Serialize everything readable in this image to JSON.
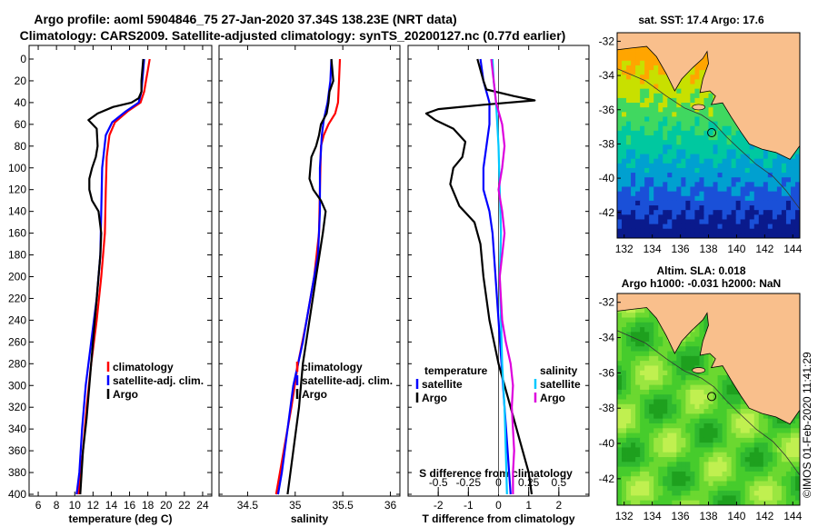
{
  "header": {
    "line1": "Argo profile: aoml 5904846_75 27-Jan-2020 37.34S 138.23E (NRT data)",
    "line2": "Climatology: CARS2009. Satellite-adjusted climatology: synTS_20200127.nc (0.77d earlier)"
  },
  "colors": {
    "climatology": "#ff0000",
    "satellite": "#0000ff",
    "argo": "#000000",
    "sal_satellite": "#00c8ff",
    "sal_climatology": "#dd00dd",
    "land": "#f9bf8c",
    "sea_deep": "#0a1a8c"
  },
  "chart_data": [
    {
      "type": "line",
      "panel": "temperature",
      "xlabel": "temperature (deg C)",
      "ylabel": "",
      "xlim": [
        5,
        25
      ],
      "ylim": [
        400,
        0
      ],
      "xticks": [
        6,
        8,
        10,
        12,
        14,
        16,
        18,
        20,
        22,
        24
      ],
      "yticks": [
        0,
        20,
        40,
        60,
        80,
        100,
        120,
        140,
        160,
        180,
        200,
        220,
        240,
        260,
        280,
        300,
        320,
        340,
        360,
        380,
        400
      ],
      "legend": [
        "climatology",
        "satellite-adj. clim.",
        "Argo"
      ],
      "series": [
        {
          "name": "climatology",
          "color_key": "climatology",
          "points": [
            [
              18.2,
              0
            ],
            [
              18.0,
              10
            ],
            [
              17.8,
              20
            ],
            [
              17.6,
              30
            ],
            [
              17.2,
              40
            ],
            [
              15.8,
              48
            ],
            [
              14.4,
              58
            ],
            [
              13.8,
              70
            ],
            [
              13.5,
              90
            ],
            [
              13.4,
              120
            ],
            [
              13.3,
              160
            ],
            [
              12.9,
              200
            ],
            [
              12.4,
              240
            ],
            [
              11.8,
              280
            ],
            [
              11.3,
              320
            ],
            [
              10.9,
              360
            ],
            [
              10.4,
              400
            ]
          ]
        },
        {
          "name": "satellite-adj. clim.",
          "color_key": "satellite",
          "points": [
            [
              17.6,
              0
            ],
            [
              17.5,
              10
            ],
            [
              17.4,
              20
            ],
            [
              17.3,
              30
            ],
            [
              17.0,
              40
            ],
            [
              15.6,
              48
            ],
            [
              14.1,
              58
            ],
            [
              13.4,
              70
            ],
            [
              13.0,
              100
            ],
            [
              12.9,
              140
            ],
            [
              12.8,
              180
            ],
            [
              12.4,
              220
            ],
            [
              11.8,
              260
            ],
            [
              11.2,
              300
            ],
            [
              10.8,
              340
            ],
            [
              10.5,
              380
            ],
            [
              10.2,
              400
            ]
          ]
        },
        {
          "name": "Argo",
          "color_key": "argo",
          "points": [
            [
              17.5,
              0
            ],
            [
              17.4,
              10
            ],
            [
              17.3,
              20
            ],
            [
              17.3,
              30
            ],
            [
              17.0,
              36
            ],
            [
              16.2,
              40
            ],
            [
              14.2,
              44
            ],
            [
              12.5,
              50
            ],
            [
              11.5,
              56
            ],
            [
              12.4,
              64
            ],
            [
              12.5,
              80
            ],
            [
              12.3,
              90
            ],
            [
              11.9,
              100
            ],
            [
              11.6,
              110
            ],
            [
              11.6,
              120
            ],
            [
              11.9,
              130
            ],
            [
              12.6,
              140
            ],
            [
              12.9,
              160
            ],
            [
              12.8,
              180
            ],
            [
              12.6,
              200
            ],
            [
              12.4,
              220
            ],
            [
              12.0,
              260
            ],
            [
              11.6,
              300
            ],
            [
              11.3,
              330
            ],
            [
              10.9,
              360
            ],
            [
              10.6,
              400
            ]
          ]
        }
      ]
    },
    {
      "type": "line",
      "panel": "salinity",
      "xlabel": "salinity",
      "xlim": [
        34.2,
        36.1
      ],
      "ylim": [
        400,
        0
      ],
      "xticks": [
        34.5,
        35,
        35.5,
        36
      ],
      "legend": [
        "climatology",
        "satellite-adj. clim.",
        "Argo"
      ],
      "series": [
        {
          "name": "climatology",
          "color_key": "climatology",
          "points": [
            [
              35.47,
              0
            ],
            [
              35.46,
              20
            ],
            [
              35.45,
              40
            ],
            [
              35.42,
              50
            ],
            [
              35.35,
              60
            ],
            [
              35.3,
              70
            ],
            [
              35.27,
              80
            ],
            [
              35.26,
              120
            ],
            [
              35.25,
              160
            ],
            [
              35.2,
              200
            ],
            [
              35.12,
              240
            ],
            [
              35.03,
              280
            ],
            [
              34.96,
              320
            ],
            [
              34.88,
              360
            ],
            [
              34.8,
              400
            ]
          ]
        },
        {
          "name": "satellite-adj. clim.",
          "color_key": "satellite",
          "points": [
            [
              35.38,
              0
            ],
            [
              35.37,
              20
            ],
            [
              35.34,
              40
            ],
            [
              35.3,
              56
            ],
            [
              35.28,
              70
            ],
            [
              35.26,
              100
            ],
            [
              35.26,
              140
            ],
            [
              35.24,
              180
            ],
            [
              35.16,
              220
            ],
            [
              35.08,
              260
            ],
            [
              34.98,
              300
            ],
            [
              34.92,
              340
            ],
            [
              34.86,
              380
            ],
            [
              34.82,
              400
            ]
          ]
        },
        {
          "name": "Argo",
          "color_key": "argo",
          "points": [
            [
              35.38,
              0
            ],
            [
              35.4,
              20
            ],
            [
              35.36,
              30
            ],
            [
              35.35,
              40
            ],
            [
              35.33,
              50
            ],
            [
              35.27,
              60
            ],
            [
              35.25,
              70
            ],
            [
              35.22,
              80
            ],
            [
              35.17,
              90
            ],
            [
              35.16,
              100
            ],
            [
              35.15,
              110
            ],
            [
              35.19,
              120
            ],
            [
              35.27,
              130
            ],
            [
              35.32,
              140
            ],
            [
              35.29,
              160
            ],
            [
              35.22,
              200
            ],
            [
              35.15,
              240
            ],
            [
              35.08,
              280
            ],
            [
              35.04,
              320
            ],
            [
              34.98,
              360
            ],
            [
              34.92,
              400
            ]
          ]
        }
      ]
    },
    {
      "type": "line",
      "panel": "difference",
      "xlabel": "T difference from climatology",
      "x2label": "S difference from climatology",
      "xlim": [
        -3,
        3
      ],
      "x2lim": [
        -0.75,
        0.75
      ],
      "ylim": [
        400,
        0
      ],
      "xticks": [
        -2,
        -1,
        0,
        1,
        2
      ],
      "x2ticks": [
        "-0.5",
        "-0.25",
        "0",
        "0.25",
        "0.5"
      ],
      "legend_temperature_title": "temperature",
      "legend_salinity_title": "salinity",
      "legend_temperature": [
        "satellite",
        "Argo"
      ],
      "legend_salinity": [
        "satellite",
        "Argo"
      ],
      "series": [
        {
          "name": "T satellite",
          "color_key": "satellite",
          "points": [
            [
              -0.6,
              0
            ],
            [
              -0.5,
              20
            ],
            [
              -0.3,
              40
            ],
            [
              -0.3,
              60
            ],
            [
              -0.4,
              80
            ],
            [
              -0.5,
              100
            ],
            [
              -0.5,
              120
            ],
            [
              -0.3,
              140
            ],
            [
              -0.2,
              160
            ],
            [
              -0.1,
              200
            ],
            [
              0.0,
              240
            ],
            [
              0.1,
              280
            ],
            [
              0.2,
              320
            ],
            [
              0.3,
              360
            ],
            [
              0.4,
              400
            ]
          ]
        },
        {
          "name": "T Argo",
          "color_key": "argo",
          "points": [
            [
              -0.7,
              0
            ],
            [
              -0.6,
              10
            ],
            [
              -0.5,
              20
            ],
            [
              -0.4,
              28
            ],
            [
              0.5,
              34
            ],
            [
              1.2,
              38
            ],
            [
              -0.5,
              42
            ],
            [
              -2.0,
              46
            ],
            [
              -2.4,
              50
            ],
            [
              -2.1,
              56
            ],
            [
              -1.5,
              64
            ],
            [
              -1.1,
              76
            ],
            [
              -1.2,
              90
            ],
            [
              -1.5,
              100
            ],
            [
              -1.6,
              115
            ],
            [
              -1.3,
              135
            ],
            [
              -0.8,
              150
            ],
            [
              -0.6,
              170
            ],
            [
              -0.5,
              200
            ],
            [
              -0.3,
              240
            ],
            [
              0.0,
              280
            ],
            [
              0.4,
              320
            ],
            [
              0.7,
              350
            ],
            [
              1.0,
              380
            ],
            [
              1.1,
              400
            ]
          ]
        },
        {
          "name": "S satellite",
          "color_key": "sal_satellite",
          "points": [
            [
              -0.05,
              0
            ],
            [
              -0.04,
              20
            ],
            [
              -0.02,
              40
            ],
            [
              0.0,
              80
            ],
            [
              0.01,
              120
            ],
            [
              0.02,
              160
            ],
            [
              0.01,
              200
            ],
            [
              0.02,
              240
            ],
            [
              0.03,
              280
            ],
            [
              0.05,
              320
            ],
            [
              0.06,
              360
            ],
            [
              0.07,
              400
            ]
          ]
        },
        {
          "name": "S Argo",
          "color_key": "sal_climatology",
          "points": [
            [
              -0.06,
              0
            ],
            [
              -0.04,
              20
            ],
            [
              -0.02,
              40
            ],
            [
              0.03,
              60
            ],
            [
              0.05,
              80
            ],
            [
              0.03,
              100
            ],
            [
              0.0,
              120
            ],
            [
              0.03,
              140
            ],
            [
              0.05,
              160
            ],
            [
              0.03,
              180
            ],
            [
              0.01,
              200
            ],
            [
              0.03,
              240
            ],
            [
              0.06,
              260
            ],
            [
              0.1,
              280
            ],
            [
              0.12,
              300
            ],
            [
              0.11,
              320
            ],
            [
              0.12,
              340
            ],
            [
              0.13,
              360
            ],
            [
              0.12,
              380
            ],
            [
              0.12,
              400
            ]
          ]
        }
      ]
    },
    {
      "type": "heatmap",
      "panel": "sst_map",
      "title": "sat. SST: 17.4 Argo: 17.6",
      "xticks": [
        132,
        134,
        136,
        138,
        140,
        142,
        144
      ],
      "yticks": [
        -32,
        -34,
        -36,
        -38,
        -40,
        -42
      ],
      "xlim": [
        131.5,
        144.5
      ],
      "ylim": [
        -43.5,
        -31.5
      ],
      "marker_lonlat": [
        138.23,
        -37.34
      ]
    },
    {
      "type": "heatmap",
      "panel": "sla_map",
      "title": "Altim. SLA: 0.018",
      "subtitle": "Argo h1000: -0.031 h2000: NaN",
      "xticks": [
        132,
        134,
        136,
        138,
        140,
        142,
        144
      ],
      "yticks": [
        -32,
        -34,
        -36,
        -38,
        -40,
        -42
      ],
      "xlim": [
        131.5,
        144.5
      ],
      "ylim": [
        -43.5,
        -31.5
      ],
      "marker_lonlat": [
        138.23,
        -37.34
      ]
    }
  ],
  "watermark": "©IMOS 01-Feb-2020 11:41:29"
}
